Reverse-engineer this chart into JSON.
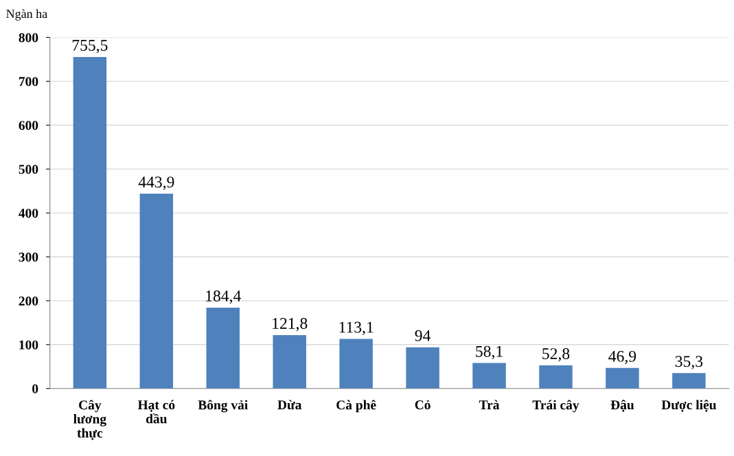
{
  "chart_data": {
    "type": "bar",
    "ylabel": "Ngàn ha",
    "categories": [
      "Cây\nlương\nthực",
      "Hạt có\ndầu",
      "Bông vải",
      "Dừa",
      "Cà phê",
      "Cỏ",
      "Trà",
      "Trái cây",
      "Đậu",
      "Dược liệu"
    ],
    "values": [
      755.5,
      443.9,
      184.4,
      121.8,
      113.1,
      94,
      58.1,
      52.8,
      46.9,
      35.3
    ],
    "value_labels": [
      "755,5",
      "443,9",
      "184,4",
      "121,8",
      "113,1",
      "94",
      "58,1",
      "52,8",
      "46,9",
      "35,3"
    ],
    "color": "#4f81bd",
    "ylim": [
      0,
      800
    ],
    "yticks": [
      0,
      100,
      200,
      300,
      400,
      500,
      600,
      700,
      800
    ],
    "grid": "y",
    "legend": false
  }
}
